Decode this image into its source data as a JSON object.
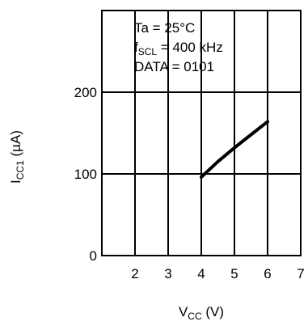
{
  "chart_data": {
    "type": "line",
    "annotations": [
      {
        "main": "Ta = 25°C",
        "sub": "",
        "rest": ""
      },
      {
        "main": "f",
        "sub": "SCL",
        "rest": " = 400 kHz"
      },
      {
        "main": "DATA = 0101",
        "sub": "",
        "rest": ""
      }
    ],
    "ylabel": {
      "main": "I",
      "sub": "CC1",
      "rest": " (µA)"
    },
    "xlabel": {
      "main": "V",
      "sub": "CC",
      "rest": " (V)"
    },
    "xlim": [
      1,
      7
    ],
    "ylim": [
      0,
      300
    ],
    "x_ticks": [
      2,
      3,
      4,
      5,
      6,
      7
    ],
    "x_tick_labels": [
      "2",
      "3",
      "4",
      "5",
      "6",
      "7"
    ],
    "y_ticks": [
      0,
      100,
      200
    ],
    "y_tick_labels": [
      "0",
      "100",
      "200"
    ],
    "grid": true,
    "series": [
      {
        "values": [
          {
            "x": 4,
            "y": 96
          },
          {
            "x": 4.5,
            "y": 115
          },
          {
            "x": 5,
            "y": 132
          },
          {
            "x": 5.5,
            "y": 148
          },
          {
            "x": 6,
            "y": 164
          }
        ]
      }
    ]
  }
}
